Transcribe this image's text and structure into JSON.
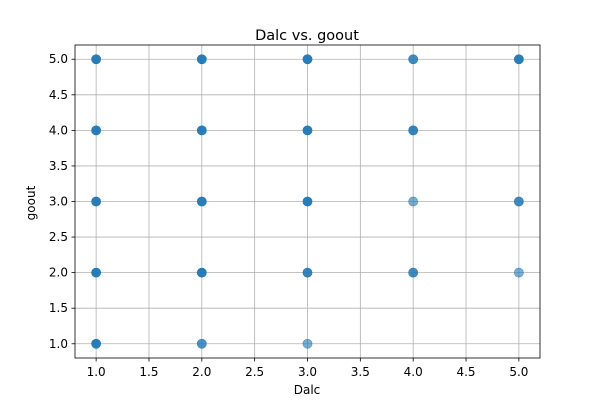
{
  "chart_data": {
    "type": "scatter",
    "title": "Dalc vs. goout",
    "xlabel": "Dalc",
    "ylabel": "goout",
    "xlim": [
      0.8,
      5.2
    ],
    "ylim": [
      0.8,
      5.2
    ],
    "xticks": [
      "1.0",
      "1.5",
      "2.0",
      "2.5",
      "3.0",
      "3.5",
      "4.0",
      "4.5",
      "5.0"
    ],
    "yticks": [
      "1.0",
      "1.5",
      "2.0",
      "2.5",
      "3.0",
      "3.5",
      "4.0",
      "4.5",
      "5.0"
    ],
    "grid": true,
    "marker_color": "#1f77b4",
    "points": [
      {
        "x": 1,
        "y": 1,
        "opacity": 0.95
      },
      {
        "x": 1,
        "y": 2,
        "opacity": 0.95
      },
      {
        "x": 1,
        "y": 3,
        "opacity": 0.95
      },
      {
        "x": 1,
        "y": 4,
        "opacity": 0.95
      },
      {
        "x": 1,
        "y": 5,
        "opacity": 0.95
      },
      {
        "x": 2,
        "y": 1,
        "opacity": 0.8
      },
      {
        "x": 2,
        "y": 2,
        "opacity": 0.95
      },
      {
        "x": 2,
        "y": 3,
        "opacity": 0.95
      },
      {
        "x": 2,
        "y": 4,
        "opacity": 0.95
      },
      {
        "x": 2,
        "y": 5,
        "opacity": 0.95
      },
      {
        "x": 3,
        "y": 1,
        "opacity": 0.6
      },
      {
        "x": 3,
        "y": 2,
        "opacity": 0.9
      },
      {
        "x": 3,
        "y": 3,
        "opacity": 0.95
      },
      {
        "x": 3,
        "y": 4,
        "opacity": 0.95
      },
      {
        "x": 3,
        "y": 5,
        "opacity": 0.95
      },
      {
        "x": 4,
        "y": 2,
        "opacity": 0.85
      },
      {
        "x": 4,
        "y": 3,
        "opacity": 0.6
      },
      {
        "x": 4,
        "y": 4,
        "opacity": 0.9
      },
      {
        "x": 4,
        "y": 5,
        "opacity": 0.85
      },
      {
        "x": 5,
        "y": 2,
        "opacity": 0.6
      },
      {
        "x": 5,
        "y": 3,
        "opacity": 0.85
      },
      {
        "x": 5,
        "y": 5,
        "opacity": 0.95
      }
    ]
  }
}
